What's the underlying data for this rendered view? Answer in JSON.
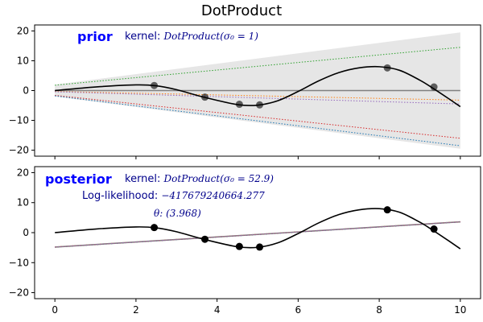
{
  "title": "DotProduct",
  "colors": {
    "annotation_label": "#0000ff",
    "annotation_text": "#00008b",
    "mean": "#808080",
    "band": "#e6e6e6",
    "true_fn": "#000000",
    "points": "#000000"
  },
  "chart_data": [
    {
      "type": "line",
      "panel": "prior",
      "xlim": [
        -0.5,
        10.5
      ],
      "ylim": [
        -22,
        22
      ],
      "xticks": [
        0,
        2,
        4,
        6,
        8,
        10
      ],
      "yticks": [
        -20,
        -10,
        0,
        10,
        20
      ],
      "show_xtick_labels": false,
      "grid": false,
      "annotations": {
        "label": "prior",
        "kernel_prefix": "kernel: ",
        "kernel_expr": "DotProduct(σ₀ = 1)"
      },
      "band": {
        "x": [
          0,
          10
        ],
        "upper": [
          2,
          19.5
        ],
        "lower": [
          -2,
          -19.5
        ]
      },
      "mean": {
        "x": [
          0,
          10
        ],
        "y": [
          0,
          0
        ]
      },
      "samples": [
        {
          "color": "#2ca02c",
          "x": [
            0,
            10
          ],
          "y": [
            1.8,
            14.5
          ]
        },
        {
          "color": "#ff7f0e",
          "x": [
            0,
            10
          ],
          "y": [
            -0.3,
            -3.2
          ]
        },
        {
          "color": "#9467bd",
          "x": [
            0,
            10
          ],
          "y": [
            -0.4,
            -4.5
          ]
        },
        {
          "color": "#d62728",
          "x": [
            0,
            10
          ],
          "y": [
            -1.6,
            -16.0
          ]
        },
        {
          "color": "#1f77b4",
          "x": [
            0,
            10
          ],
          "y": [
            -1.8,
            -18.5
          ]
        }
      ],
      "true_function": {
        "x": [
          0,
          1,
          2,
          2.5,
          3,
          3.7,
          4.5,
          5,
          5.5,
          6,
          6.5,
          7,
          7.5,
          8,
          8.5,
          9,
          9.3,
          9.7,
          10
        ],
        "y": [
          0,
          1.2,
          1.9,
          1.6,
          0.3,
          -2.3,
          -4.7,
          -4.9,
          -3.4,
          -0.3,
          3.2,
          6.0,
          7.6,
          8.0,
          6.8,
          3.5,
          1.0,
          -2.6,
          -5.4
        ]
      },
      "points": {
        "x": [
          2.45,
          3.7,
          4.55,
          5.05,
          8.2,
          9.35
        ],
        "y": [
          1.7,
          -2.2,
          -4.6,
          -4.8,
          7.6,
          1.2
        ]
      }
    },
    {
      "type": "line",
      "panel": "posterior",
      "xlim": [
        -0.5,
        10.5
      ],
      "ylim": [
        -22,
        22
      ],
      "xticks": [
        0,
        2,
        4,
        6,
        8,
        10
      ],
      "yticks": [
        -20,
        -10,
        0,
        10,
        20
      ],
      "show_xtick_labels": true,
      "grid": false,
      "annotations": {
        "label": "posterior",
        "kernel_prefix": "kernel: ",
        "kernel_expr": "DotProduct(σ₀ = 52.9)",
        "loglik_prefix": "Log-likelihood: ",
        "loglik_value": "−417679240664.277",
        "theta": "θ: (3.968)"
      },
      "mean": {
        "x": [
          0,
          10
        ],
        "y": [
          -4.8,
          3.6
        ]
      },
      "samples": [
        {
          "color": "#1f77b4",
          "x": [
            0,
            10
          ],
          "y": [
            -4.85,
            3.55
          ]
        },
        {
          "color": "#ff7f0e",
          "x": [
            0,
            10
          ],
          "y": [
            -4.75,
            3.65
          ]
        },
        {
          "color": "#2ca02c",
          "x": [
            0,
            10
          ],
          "y": [
            -4.8,
            3.6
          ]
        },
        {
          "color": "#d62728",
          "x": [
            0,
            10
          ],
          "y": [
            -4.82,
            3.58
          ]
        },
        {
          "color": "#9467bd",
          "x": [
            0,
            10
          ],
          "y": [
            -4.78,
            3.62
          ]
        }
      ],
      "true_function": {
        "x": [
          0,
          1,
          2,
          2.5,
          3,
          3.7,
          4.5,
          5,
          5.5,
          6,
          6.5,
          7,
          7.5,
          8,
          8.5,
          9,
          9.3,
          9.7,
          10
        ],
        "y": [
          0,
          1.2,
          1.9,
          1.6,
          0.3,
          -2.3,
          -4.7,
          -4.9,
          -3.4,
          -0.3,
          3.2,
          6.0,
          7.6,
          8.0,
          6.8,
          3.5,
          1.0,
          -2.6,
          -5.4
        ]
      },
      "points": {
        "x": [
          2.45,
          3.7,
          4.55,
          5.05,
          8.2,
          9.35
        ],
        "y": [
          1.7,
          -2.2,
          -4.6,
          -4.8,
          7.6,
          1.2
        ]
      }
    }
  ]
}
